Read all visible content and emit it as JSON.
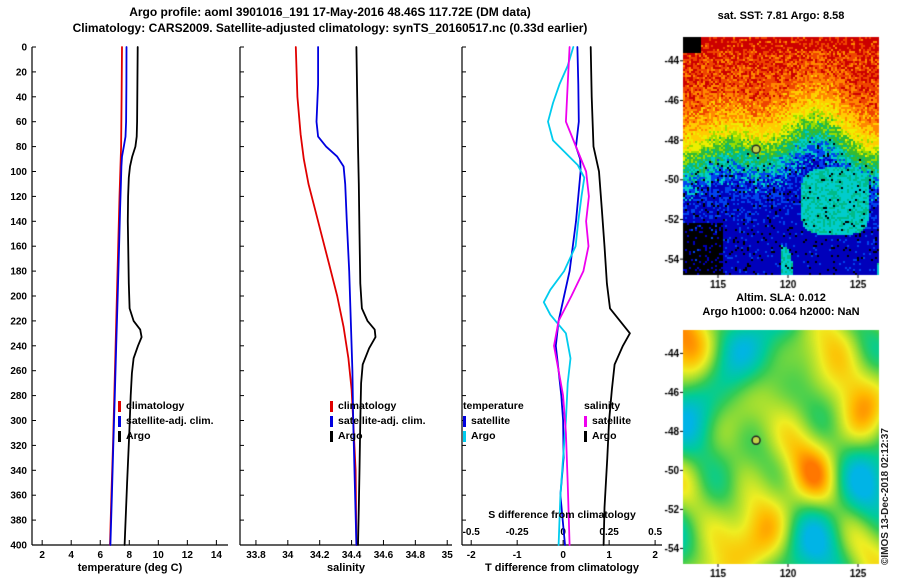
{
  "header": {
    "line1": "Argo profile: aoml 3901016_191 17-May-2016 48.46S 117.72E (DM data)",
    "line2": "Climatology: CARS2009. Satellite-adjusted climatology: synTS_20160517.nc (0.33d earlier)"
  },
  "copyright": "©IMOS 13-Dec-2018 02:12:37",
  "chart_data": [
    {
      "id": "temperature-profile",
      "type": "line",
      "xlabel": "temperature (deg C)",
      "xlim": [
        1.3,
        14.8
      ],
      "xticks": [
        2,
        4,
        6,
        8,
        10,
        12,
        14
      ],
      "xtick_labels": [
        "2",
        "4",
        "6",
        "8",
        "10",
        "12",
        "14"
      ],
      "ylim": [
        0,
        400
      ],
      "ytick_step": 20,
      "show_depth_labels": true,
      "legend": [
        {
          "color": "#e00000",
          "label": "climatology"
        },
        {
          "color": "#0000e0",
          "label": "satellite-adj. clim."
        },
        {
          "color": "#000000",
          "label": "Argo"
        }
      ],
      "series": [
        {
          "name": "climatology",
          "color": "#e00000",
          "depth": [
            0,
            40,
            80,
            120,
            160,
            200,
            240,
            280,
            320,
            360,
            400
          ],
          "values": [
            7.5,
            7.47,
            7.44,
            7.33,
            7.24,
            7.15,
            7.06,
            6.97,
            6.88,
            6.77,
            6.67
          ]
        },
        {
          "name": "satellite-adj. clim.",
          "color": "#0000e0",
          "depth": [
            0,
            30,
            60,
            72,
            80,
            88,
            96,
            110,
            130,
            160,
            200,
            240,
            280,
            320,
            360,
            400
          ],
          "values": [
            7.81,
            7.8,
            7.78,
            7.74,
            7.62,
            7.5,
            7.46,
            7.42,
            7.37,
            7.3,
            7.2,
            7.1,
            7.0,
            6.9,
            6.8,
            6.7
          ]
        },
        {
          "name": "Argo",
          "color": "#000000",
          "depth": [
            0,
            30,
            60,
            72,
            80,
            88,
            96,
            105,
            120,
            140,
            165,
            190,
            210,
            220,
            227,
            233,
            240,
            250,
            262,
            280,
            310,
            350,
            400
          ],
          "values": [
            8.58,
            8.56,
            8.54,
            8.51,
            8.42,
            8.2,
            8.05,
            7.97,
            7.92,
            7.9,
            7.93,
            7.97,
            8.02,
            8.3,
            8.75,
            8.85,
            8.6,
            8.3,
            8.18,
            8.1,
            8.0,
            7.85,
            7.68
          ]
        }
      ]
    },
    {
      "id": "salinity-profile",
      "type": "line",
      "xlabel": "salinity",
      "xlim": [
        33.7,
        35.03
      ],
      "xticks": [
        33.8,
        34,
        34.2,
        34.4,
        34.6,
        34.8,
        35
      ],
      "xtick_labels": [
        "33.8",
        "34",
        "34.2",
        "34.4",
        "34.6",
        "34.8",
        "35"
      ],
      "ylim": [
        0,
        400
      ],
      "ytick_step": 20,
      "show_depth_labels": false,
      "legend": [
        {
          "color": "#e00000",
          "label": "climatology"
        },
        {
          "color": "#0000e0",
          "label": "satellite-adj. clim."
        },
        {
          "color": "#000000",
          "label": "Argo"
        }
      ],
      "series": [
        {
          "name": "climatology",
          "color": "#e00000",
          "depth": [
            0,
            40,
            70,
            90,
            110,
            130,
            150,
            175,
            200,
            225,
            250,
            275,
            300,
            340,
            400
          ],
          "values": [
            34.05,
            34.06,
            34.08,
            34.1,
            34.13,
            34.17,
            34.21,
            34.26,
            34.31,
            34.35,
            34.38,
            34.4,
            34.41,
            34.425,
            34.43
          ]
        },
        {
          "name": "satellite-adj. clim.",
          "color": "#0000e0",
          "depth": [
            0,
            30,
            60,
            72,
            80,
            88,
            96,
            110,
            140,
            180,
            220,
            260,
            300,
            350,
            400
          ],
          "values": [
            34.19,
            34.19,
            34.18,
            34.19,
            34.24,
            34.31,
            34.35,
            34.36,
            34.37,
            34.385,
            34.395,
            34.405,
            34.41,
            34.42,
            34.43
          ]
        },
        {
          "name": "Argo",
          "color": "#000000",
          "depth": [
            0,
            40,
            80,
            110,
            150,
            190,
            210,
            220,
            227,
            233,
            242,
            255,
            270,
            300,
            340,
            370,
            400
          ],
          "values": [
            34.43,
            34.435,
            34.44,
            34.445,
            34.45,
            34.455,
            34.465,
            34.5,
            34.545,
            34.55,
            34.51,
            34.47,
            34.46,
            34.455,
            34.45,
            34.445,
            34.44
          ]
        }
      ]
    },
    {
      "id": "difference-from-climatology",
      "type": "line",
      "xlabel": "T difference from climatology",
      "xlim": [
        -2.2,
        2.15
      ],
      "xticks": [
        -2,
        -1,
        0,
        1,
        2
      ],
      "xtick_labels": [
        "-2",
        "-1",
        "0",
        "1",
        "2"
      ],
      "ylim": [
        0,
        400
      ],
      "ytick_step": 20,
      "show_depth_labels": false,
      "s_axis": {
        "title": "S difference from climatology",
        "labels": [
          "-0.5",
          "-0.25",
          "0",
          "0.25",
          "0.5"
        ],
        "values": [
          -2,
          -1,
          0,
          1,
          2
        ],
        "scale_note": "S axis = T axis / 4"
      },
      "legend_left": {
        "header": "temperature",
        "items": [
          {
            "color": "#0000e0",
            "label": "satellite"
          },
          {
            "color": "#00ccee",
            "label": "Argo"
          }
        ]
      },
      "legend_right": {
        "header": "salinity",
        "items": [
          {
            "color": "#ee00ee",
            "label": "satellite"
          },
          {
            "color": "#000000",
            "label": "Argo"
          }
        ]
      },
      "series": [
        {
          "name": "T diff satellite",
          "color": "#0000e0",
          "plot_scale": 1,
          "depth": [
            0,
            30,
            60,
            80,
            90,
            100,
            120,
            140,
            160,
            180,
            200,
            220,
            240,
            260,
            280,
            300,
            330,
            360,
            400
          ],
          "values": [
            0.31,
            0.33,
            0.34,
            0.28,
            0.37,
            0.38,
            0.33,
            0.28,
            0.21,
            0.14,
            0.02,
            -0.1,
            -0.16,
            -0.1,
            -0.04,
            0.0,
            0.01,
            -0.06,
            0.04
          ]
        },
        {
          "name": "T diff Argo",
          "color": "#00ccee",
          "plot_scale": 1,
          "depth": [
            0,
            15,
            30,
            45,
            60,
            75,
            85,
            95,
            105,
            120,
            140,
            160,
            180,
            195,
            205,
            215,
            230,
            250,
            270,
            300,
            330,
            360,
            400
          ],
          "values": [
            0.22,
            0.1,
            -0.08,
            -0.22,
            -0.33,
            -0.22,
            0.05,
            0.32,
            0.46,
            0.4,
            0.33,
            0.27,
            0.02,
            -0.28,
            -0.42,
            -0.28,
            0.06,
            0.16,
            0.1,
            0.06,
            0.0,
            -0.06,
            -0.1
          ]
        },
        {
          "name": "S diff satellite",
          "color": "#ee00ee",
          "plot_scale": 4,
          "depth": [
            0,
            30,
            60,
            80,
            100,
            120,
            140,
            160,
            180,
            200,
            220,
            240,
            260,
            280,
            310,
            350,
            400
          ],
          "values": [
            0.035,
            0.025,
            0.015,
            0.07,
            0.125,
            0.14,
            0.125,
            0.138,
            0.11,
            0.045,
            -0.025,
            -0.05,
            -0.025,
            0.0,
            0.015,
            0.025,
            0.035
          ]
        },
        {
          "name": "S diff Argo",
          "color": "#000000",
          "plot_scale": 4,
          "depth": [
            0,
            40,
            80,
            100,
            130,
            160,
            190,
            210,
            222,
            230,
            240,
            255,
            275,
            300,
            330,
            370,
            400
          ],
          "values": [
            0.15,
            0.155,
            0.165,
            0.195,
            0.21,
            0.225,
            0.238,
            0.255,
            0.32,
            0.363,
            0.325,
            0.28,
            0.265,
            0.25,
            0.24,
            0.225,
            0.22
          ]
        }
      ]
    }
  ],
  "maps": {
    "sst": {
      "title": "sat. SST: 7.81 Argo: 8.58",
      "xticks": [
        115,
        120,
        125
      ],
      "yticks": [
        -44,
        -46,
        -48,
        -50,
        -52,
        -54
      ],
      "lon_range": [
        112.5,
        126.5
      ],
      "lat_range": [
        -42.8,
        -54.8
      ],
      "marker": {
        "lon": 117.72,
        "lat": -48.46
      }
    },
    "sla": {
      "title1": "Altim. SLA: 0.012",
      "title2": "Argo h1000: 0.064 h2000: NaN",
      "xticks": [
        115,
        120,
        125
      ],
      "yticks": [
        -44,
        -46,
        -48,
        -50,
        -52,
        -54
      ],
      "lon_range": [
        112.5,
        126.5
      ],
      "lat_range": [
        -42.8,
        -54.8
      ],
      "marker": {
        "lon": 117.72,
        "lat": -48.46
      }
    }
  }
}
